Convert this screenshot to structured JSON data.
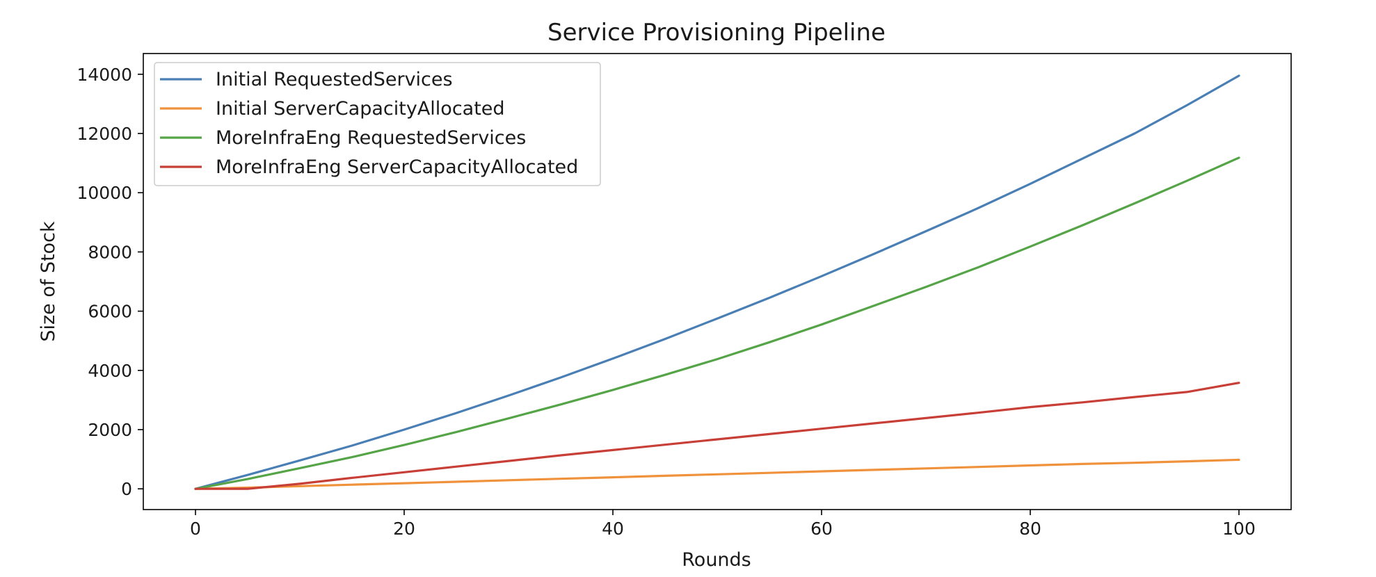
{
  "chart_data": {
    "type": "line",
    "title": "Service Provisioning Pipeline",
    "xlabel": "Rounds",
    "ylabel": "Size of Stock",
    "xlim": [
      -5,
      105
    ],
    "ylim": [
      -700,
      14700
    ],
    "xticks": [
      0,
      20,
      40,
      60,
      80,
      100
    ],
    "yticks": [
      0,
      2000,
      4000,
      6000,
      8000,
      10000,
      12000,
      14000
    ],
    "grid": false,
    "legend_position": "top-left",
    "x": [
      0,
      5,
      10,
      15,
      20,
      25,
      30,
      35,
      40,
      45,
      50,
      55,
      60,
      65,
      70,
      75,
      80,
      85,
      90,
      95,
      100
    ],
    "series": [
      {
        "name": "Initial RequestedServices",
        "color": "#4a7fb5",
        "values": [
          0,
          470,
          960,
          1460,
          2000,
          2560,
          3150,
          3760,
          4400,
          5060,
          5750,
          6450,
          7180,
          7930,
          8700,
          9480,
          10300,
          11150,
          12000,
          12950,
          13950
        ]
      },
      {
        "name": "Initial ServerCapacityAllocated",
        "color": "#f0923c",
        "values": [
          0,
          40,
          90,
          140,
          190,
          240,
          290,
          340,
          390,
          440,
          490,
          540,
          590,
          640,
          690,
          740,
          790,
          840,
          880,
          930,
          980
        ]
      },
      {
        "name": "MoreInfraEng RequestedServices",
        "color": "#55a447",
        "values": [
          0,
          330,
          700,
          1070,
          1480,
          1920,
          2380,
          2850,
          3340,
          3850,
          4380,
          4950,
          5550,
          6180,
          6820,
          7480,
          8180,
          8900,
          9640,
          10400,
          11180
        ]
      },
      {
        "name": "MoreInfraEng ServerCapacityAllocated",
        "color": "#c83f37",
        "values": [
          0,
          0,
          170,
          370,
          560,
          750,
          940,
          1130,
          1310,
          1490,
          1670,
          1850,
          2030,
          2210,
          2390,
          2570,
          2760,
          2920,
          3100,
          3270,
          3580
        ]
      }
    ]
  }
}
